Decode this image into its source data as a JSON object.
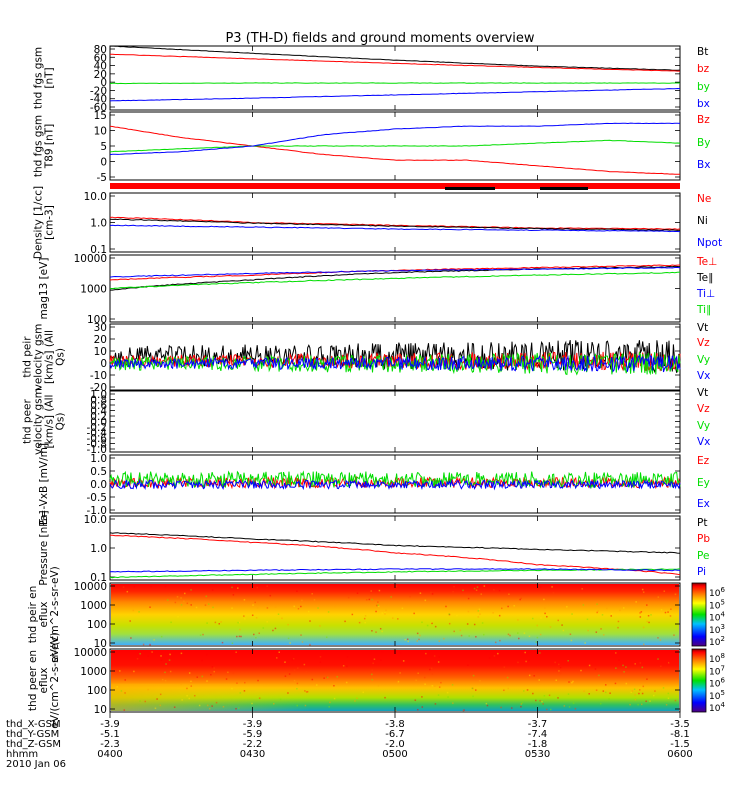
{
  "title": "P3 (TH-D) fields and ground moments overview",
  "time_axis": {
    "ticks": [
      "0400",
      "0430",
      "0500",
      "0530",
      "0600"
    ],
    "rows": [
      {
        "label": "thd_X-GSM",
        "values": [
          "-3.9",
          "-3.9",
          "-3.8",
          "-3.7",
          "-3.5"
        ]
      },
      {
        "label": "thd_Y-GSM",
        "values": [
          "-5.1",
          "-5.9",
          "-6.7",
          "-7.4",
          "-8.1"
        ]
      },
      {
        "label": "thd_Z-GSM",
        "values": [
          "-2.3",
          "-2.2",
          "-2.0",
          "-1.8",
          "-1.5"
        ]
      },
      {
        "label": "hhmm",
        "values": []
      }
    ],
    "date": "2010 Jan 06"
  },
  "colors": {
    "black": "#000000",
    "red": "#ff0000",
    "green": "#00dd00",
    "blue": "#0000ff"
  },
  "chart_data": [
    {
      "type": "line",
      "ylabel": "thd fgs gsm [nT]",
      "yticks": [
        "80",
        "60",
        "40",
        "20",
        "0",
        "-20",
        "-40",
        "-60"
      ],
      "ylim": [
        -60,
        80
      ],
      "x": [
        "0400",
        "0430",
        "0500",
        "0530",
        "0600"
      ],
      "series": [
        {
          "name": "Bt",
          "color": "black",
          "values": [
            80,
            64,
            49,
            36,
            27
          ]
        },
        {
          "name": "bz",
          "color": "red",
          "values": [
            62,
            52,
            42,
            33,
            25
          ]
        },
        {
          "name": "by",
          "color": "green",
          "values": [
            -2,
            -1,
            -1,
            -1,
            -1
          ]
        },
        {
          "name": "bx",
          "color": "blue",
          "values": [
            -40,
            -34,
            -27,
            -20,
            -13
          ]
        }
      ]
    },
    {
      "type": "line",
      "ylabel": "thd fgs gsm T89 [nT]",
      "yticks": [
        "15",
        "10",
        "5",
        "0",
        "-5"
      ],
      "ylim": [
        -7,
        17
      ],
      "x": [
        "0400",
        "0415",
        "0430",
        "0445",
        "0500",
        "0515",
        "0530",
        "0545",
        "0600"
      ],
      "series": [
        {
          "name": "Bz",
          "color": "red",
          "values": [
            12,
            8,
            5,
            2,
            0,
            0,
            -2,
            -4,
            -5
          ]
        },
        {
          "name": "By",
          "color": "green",
          "values": [
            3,
            4,
            5,
            5,
            5,
            5,
            6,
            7,
            6
          ]
        },
        {
          "name": "Bx",
          "color": "blue",
          "values": [
            2,
            3,
            5,
            9,
            11,
            12,
            12,
            13,
            13
          ]
        }
      ]
    },
    {
      "type": "line",
      "ylabel": "Density [1/cc] [cm-3]",
      "yscale": "log",
      "yticks": [
        "10.0",
        "1.0",
        "0.1"
      ],
      "ylim": [
        0.1,
        10
      ],
      "x": [
        "0400",
        "0430",
        "0500",
        "0530",
        "0600"
      ],
      "series": [
        {
          "name": "Ne",
          "color": "red",
          "values": [
            1.5,
            1.0,
            0.8,
            0.65,
            0.6
          ]
        },
        {
          "name": "Ni",
          "color": "black",
          "values": [
            1.3,
            0.95,
            0.75,
            0.62,
            0.55
          ]
        },
        {
          "name": "Npot",
          "color": "blue",
          "values": [
            0.8,
            0.7,
            0.6,
            0.55,
            0.5
          ]
        }
      ]
    },
    {
      "type": "line",
      "ylabel": "mag13 [eV]",
      "yscale": "log",
      "yticks": [
        "10000",
        "1000",
        "100"
      ],
      "ylim": [
        100,
        10000
      ],
      "x": [
        "0400",
        "0430",
        "0500",
        "0530",
        "0600"
      ],
      "series": [
        {
          "name": "Te⊥",
          "color": "red",
          "values": [
            1800,
            2500,
            3500,
            4200,
            5000
          ]
        },
        {
          "name": "Te∥",
          "color": "black",
          "values": [
            900,
            1800,
            3000,
            3800,
            4500
          ]
        },
        {
          "name": "Ti⊥",
          "color": "blue",
          "values": [
            2200,
            2800,
            3400,
            3800,
            4200
          ]
        },
        {
          "name": "Ti∥",
          "color": "green",
          "values": [
            1000,
            1500,
            2000,
            2500,
            3000
          ]
        }
      ]
    },
    {
      "type": "line",
      "ylabel": "thd peir velocity gsm [km/s] (All Qs)",
      "yticks": [
        "30",
        "20",
        "10",
        "0",
        "-10",
        "-20"
      ],
      "ylim": [
        -20,
        30
      ],
      "series": [
        {
          "name": "Vt",
          "color": "black",
          "values": []
        },
        {
          "name": "Vz",
          "color": "red",
          "values": []
        },
        {
          "name": "Vy",
          "color": "green",
          "values": []
        },
        {
          "name": "Vx",
          "color": "blue",
          "values": []
        }
      ]
    },
    {
      "type": "line",
      "ylabel": "thd peer velocity gsm [km/s] (All Qs)",
      "yticks": [
        "1.0",
        "0.8",
        "0.6",
        "0.4",
        "0.2",
        "0.0",
        "-0.2",
        "-0.4",
        "-0.6",
        "-0.8",
        "-1.0"
      ],
      "ylim": [
        -1,
        1
      ],
      "series": [
        {
          "name": "Vt",
          "color": "black",
          "values": []
        },
        {
          "name": "Vz",
          "color": "red",
          "values": []
        },
        {
          "name": "Vy",
          "color": "green",
          "values": []
        },
        {
          "name": "Vx",
          "color": "blue",
          "values": []
        }
      ]
    },
    {
      "type": "line",
      "ylabel": "E=-VxB [mV/m]",
      "yticks": [
        "1.0",
        "0.5",
        "0.0",
        "-0.5",
        "-1.0"
      ],
      "ylim": [
        -1,
        1
      ],
      "series": [
        {
          "name": "Ez",
          "color": "red",
          "values": []
        },
        {
          "name": "Ey",
          "color": "green",
          "values": []
        },
        {
          "name": "Ex",
          "color": "blue",
          "values": []
        }
      ]
    },
    {
      "type": "line",
      "ylabel": "Pressure [nPa]",
      "yscale": "log",
      "yticks": [
        "10.0",
        "1.0",
        "0.1"
      ],
      "ylim": [
        0.1,
        10
      ],
      "x": [
        "0400",
        "0430",
        "0500",
        "0530",
        "0600"
      ],
      "series": [
        {
          "name": "Pt",
          "color": "black",
          "values": [
            3.0,
            1.9,
            1.2,
            0.9,
            0.7
          ]
        },
        {
          "name": "Pb",
          "color": "red",
          "values": [
            2.5,
            1.5,
            0.7,
            0.3,
            0.15
          ]
        },
        {
          "name": "Pe",
          "color": "green",
          "values": [
            0.12,
            0.15,
            0.18,
            0.2,
            0.22
          ]
        },
        {
          "name": "Pi",
          "color": "blue",
          "values": [
            0.18,
            0.2,
            0.22,
            0.22,
            0.2
          ]
        }
      ]
    },
    {
      "type": "heatmap",
      "ylabel": "thd peir en eflux eV/(cm^2-s-sr-eV)",
      "yticks": [
        "10000",
        "1000",
        "100",
        "10"
      ],
      "colorbar": {
        "ticks": [
          {
            "base": "10",
            "exp": "6"
          },
          {
            "base": "10",
            "exp": "5"
          },
          {
            "base": "10",
            "exp": "4"
          },
          {
            "base": "10",
            "exp": "3"
          },
          {
            "base": "10",
            "exp": "2"
          }
        ]
      }
    },
    {
      "type": "heatmap",
      "ylabel": "thd peer en eflux eV/(cm^2-s-sr-eV)",
      "yticks": [
        "10000",
        "1000",
        "100",
        "10"
      ],
      "colorbar": {
        "ticks": [
          {
            "base": "10",
            "exp": "8"
          },
          {
            "base": "10",
            "exp": "7"
          },
          {
            "base": "10",
            "exp": "6"
          },
          {
            "base": "10",
            "exp": "5"
          },
          {
            "base": "10",
            "exp": "4"
          }
        ]
      }
    }
  ]
}
